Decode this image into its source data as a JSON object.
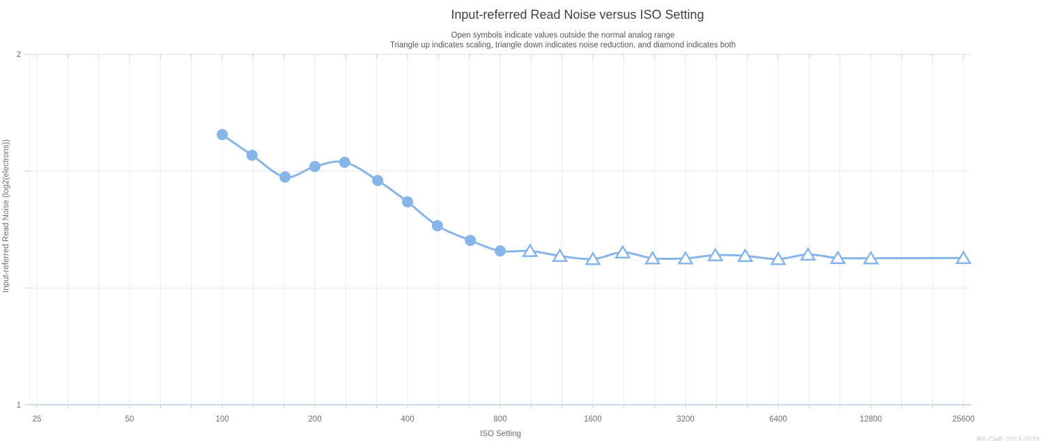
{
  "header": {
    "title": "Input-referred Read Noise versus ISO Setting",
    "subtitle_line1": "Open symbols indicate values outside the normal analog range",
    "subtitle_line2": "Triangle up indicates scaling, triangle down indicates noise reduction, and diamond indicates both"
  },
  "watermark": "Bill Claff, 2013-2023",
  "colors": {
    "series": "#87b5ea",
    "marker_fill": "#87b5ea",
    "open_marker_fill": "#ffffff",
    "grid_minor": "#ececec",
    "grid_top_border": "#d9d9d9",
    "tick": "#cfcfcf",
    "x_axis_line": "#b9cfe9",
    "tick_label": "#6e6e6e",
    "axis_title": "#6e6e6e",
    "title_text": "#3f3f3f",
    "subtitle_text": "#555555",
    "watermark_text": "#c4c8ce"
  },
  "chart_data": {
    "type": "line",
    "title": "Input-referred Read Noise versus ISO Setting",
    "subtitle": [
      "Open symbols indicate values outside the normal analog range",
      "Triangle up indicates scaling, triangle down indicates noise reduction, and diamond indicates both"
    ],
    "xlabel": "ISO Setting",
    "ylabel": "Input-referred Read Noise (log2(electrons))",
    "x_scale": "log2",
    "xlim": [
      25,
      25600
    ],
    "ylim": [
      1,
      2
    ],
    "grid": true,
    "legend_position": "none",
    "x_minor_gridlines_per_octave": 3,
    "x_ticks": [
      {
        "value": 25,
        "label": "25"
      },
      {
        "value": 50,
        "label": "50"
      },
      {
        "value": 100,
        "label": "100"
      },
      {
        "value": 200,
        "label": "200"
      },
      {
        "value": 400,
        "label": "400"
      },
      {
        "value": 800,
        "label": "800"
      },
      {
        "value": 1600,
        "label": "1600"
      },
      {
        "value": 3200,
        "label": "3200"
      },
      {
        "value": 6400,
        "label": "6400"
      },
      {
        "value": 12800,
        "label": "12800"
      },
      {
        "value": 25600,
        "label": "25600"
      }
    ],
    "y_gridline_values": [
      2,
      1.6667,
      1.3333,
      1
    ],
    "y_ticks": [
      {
        "value": 2,
        "label": "2"
      },
      {
        "value": 1,
        "label": "1"
      }
    ],
    "marker_semantics": {
      "filled-circle": "value within normal analog range",
      "open-triangle-up": "value outside normal analog range (scaling)"
    },
    "series": [
      {
        "name": "Input-referred Read Noise",
        "color": "#87b5ea",
        "line_width": 3,
        "points": [
          {
            "iso": 100,
            "value": 1.771,
            "marker": "filled-circle"
          },
          {
            "iso": 125,
            "value": 1.712,
            "marker": "filled-circle"
          },
          {
            "iso": 160,
            "value": 1.65,
            "marker": "filled-circle"
          },
          {
            "iso": 200,
            "value": 1.68,
            "marker": "filled-circle"
          },
          {
            "iso": 250,
            "value": 1.692,
            "marker": "filled-circle"
          },
          {
            "iso": 320,
            "value": 1.64,
            "marker": "filled-circle"
          },
          {
            "iso": 400,
            "value": 1.579,
            "marker": "filled-circle"
          },
          {
            "iso": 500,
            "value": 1.511,
            "marker": "filled-circle"
          },
          {
            "iso": 640,
            "value": 1.469,
            "marker": "filled-circle"
          },
          {
            "iso": 800,
            "value": 1.439,
            "marker": "filled-circle"
          },
          {
            "iso": 1000,
            "value": 1.439,
            "marker": "open-triangle-up"
          },
          {
            "iso": 1250,
            "value": 1.425,
            "marker": "open-triangle-up"
          },
          {
            "iso": 1600,
            "value": 1.416,
            "marker": "open-triangle-up"
          },
          {
            "iso": 2000,
            "value": 1.435,
            "marker": "open-triangle-up"
          },
          {
            "iso": 2500,
            "value": 1.418,
            "marker": "open-triangle-up"
          },
          {
            "iso": 3200,
            "value": 1.418,
            "marker": "open-triangle-up"
          },
          {
            "iso": 4000,
            "value": 1.427,
            "marker": "open-triangle-up"
          },
          {
            "iso": 5000,
            "value": 1.425,
            "marker": "open-triangle-up"
          },
          {
            "iso": 6400,
            "value": 1.416,
            "marker": "open-triangle-up"
          },
          {
            "iso": 8000,
            "value": 1.429,
            "marker": "open-triangle-up"
          },
          {
            "iso": 10000,
            "value": 1.419,
            "marker": "open-triangle-up"
          },
          {
            "iso": 12800,
            "value": 1.418,
            "marker": "open-triangle-up"
          },
          {
            "iso": 25600,
            "value": 1.419,
            "marker": "open-triangle-up"
          }
        ]
      }
    ]
  }
}
